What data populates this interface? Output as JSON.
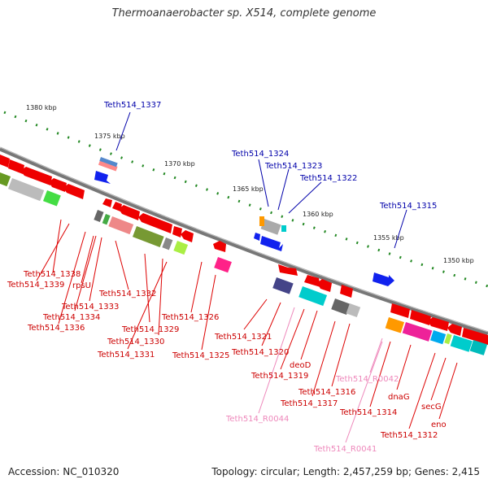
{
  "title": "Thermoanaerobacter sp. X514, complete genome",
  "footer": {
    "accession": "Accession: NC_010320",
    "stats": "Topology: circular; Length: 2,457,259 bp; Genes: 2,415"
  },
  "colors": {
    "backbone": "#777777",
    "forward_label": "#0000aa",
    "reverse_label": "#cc0000",
    "rna_label": "#ee88bb",
    "ruler_tick": "#228822"
  },
  "ruler_labels": [
    "1380 kbp",
    "1375 kbp",
    "1370 kbp",
    "1365 kbp",
    "1360 kbp",
    "1355 kbp",
    "1350 kbp"
  ],
  "forward_genes": [
    "Teth514_1337",
    "Teth514_1324",
    "Teth514_1323",
    "Teth514_1322",
    "Teth514_1315"
  ],
  "reverse_genes": [
    "Teth514_1338",
    "Teth514_1339",
    "rpsU",
    "Teth514_1333",
    "Teth514_1334",
    "Teth514_1336",
    "Teth514_1332",
    "Teth514_1329",
    "Teth514_1330",
    "Teth514_1331",
    "Teth514_1326",
    "Teth514_1325",
    "Teth514_1321",
    "Teth514_1320",
    "Teth514_1319",
    "deoD",
    "Teth514_1316",
    "Teth514_1317",
    "Teth514_1314",
    "dnaG",
    "Teth514_1312",
    "secG",
    "eno"
  ],
  "rna_genes": [
    "Teth514_R0044",
    "Teth514_R0042",
    "Teth514_R0041"
  ]
}
